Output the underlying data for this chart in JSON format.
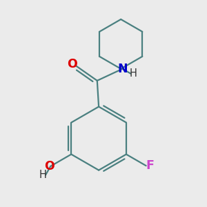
{
  "background_color": "#ebebeb",
  "bond_color": "#4a8080",
  "bond_width": 1.6,
  "atom_colors": {
    "O": "#dd0000",
    "N": "#0000cc",
    "F": "#cc44cc",
    "H": "#333333",
    "C": "#000000"
  },
  "font_size": 11.5,
  "fig_size": [
    3.0,
    3.0
  ],
  "dpi": 100,
  "xlim": [
    -2.8,
    2.8
  ],
  "ylim": [
    -3.2,
    3.2
  ]
}
